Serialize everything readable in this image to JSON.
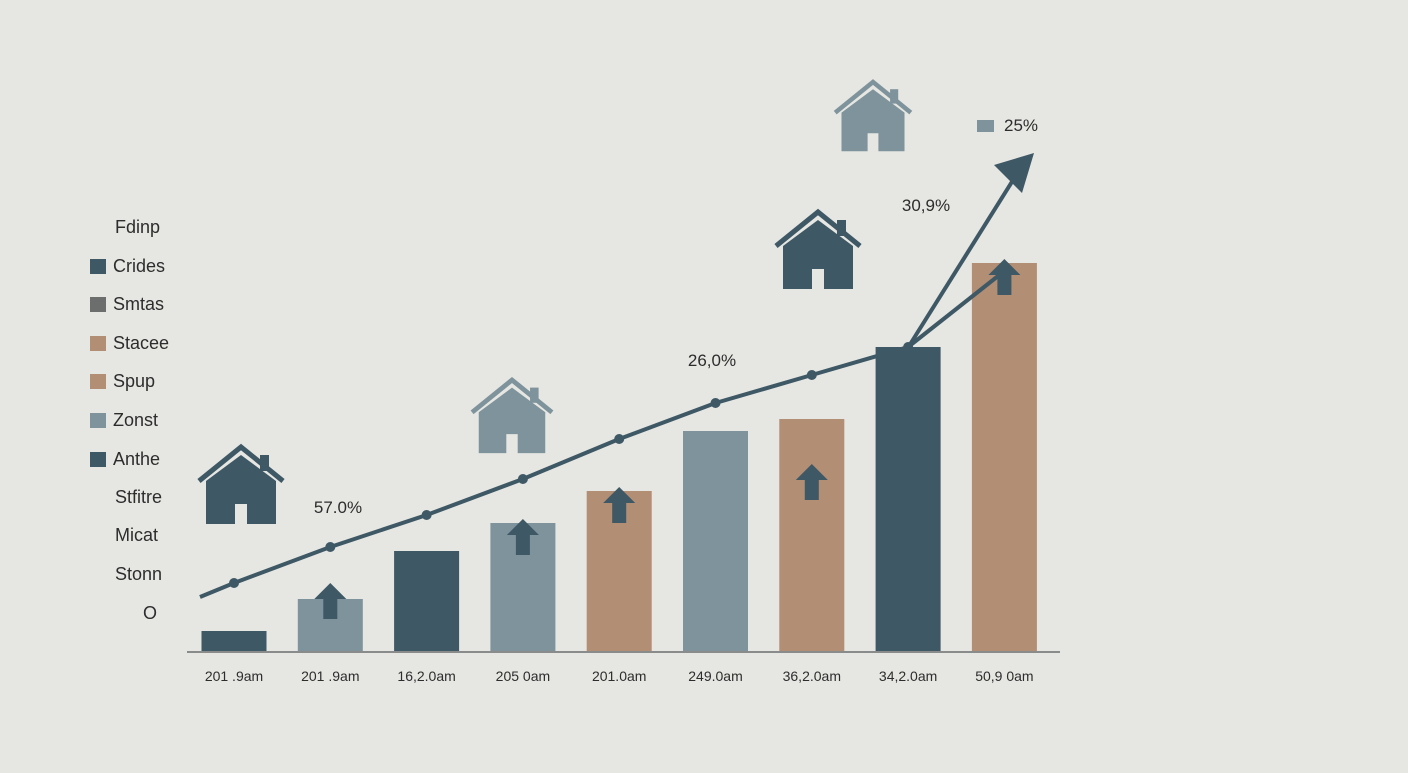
{
  "colors": {
    "background": "#e6e6e2",
    "dark_teal": "#3e5866",
    "slate": "#7e939c",
    "tan": "#b28e74",
    "gray": "#6b6e6d",
    "line": "#3e5866",
    "axis": "#8a8c8c",
    "text": "#2d2d2d"
  },
  "legend": {
    "title": "Fdinp",
    "entries": [
      {
        "label": "Crides",
        "color": "#3e5866"
      },
      {
        "label": "Smtas",
        "color": "#6b6e6d"
      },
      {
        "label": "Stacee",
        "color": "#b28e74"
      },
      {
        "label": "Spup",
        "color": "#b28e74"
      },
      {
        "label": "Zonst",
        "color": "#7e939c"
      },
      {
        "label": "Anthe",
        "color": "#3e5866"
      },
      {
        "label": "Stfitre",
        "color": null
      },
      {
        "label": "Micat",
        "color": null
      },
      {
        "label": "Stonn",
        "color": null
      },
      {
        "label": "O",
        "color": null
      }
    ]
  },
  "chart_data": {
    "type": "bar",
    "title": "",
    "xlabel": "",
    "ylabel": "",
    "ylim": [
      0,
      100
    ],
    "grid": false,
    "legend_position": "left",
    "categories": [
      "201 .9am",
      "201 .9am",
      "16,2.0am",
      "205  0am",
      "201.0am",
      "249.0am",
      "36,2.0am",
      "34,2.0am",
      "50,9 0am"
    ],
    "series": [
      {
        "type": "bar",
        "values": [
          5,
          13,
          25,
          32,
          40,
          55,
          58,
          76,
          97
        ],
        "colors": [
          "#3e5866",
          "#7e939c",
          "#3e5866",
          "#7e939c",
          "#b28e74",
          "#7e939c",
          "#b28e74",
          "#3e5866",
          "#b28e74"
        ],
        "up_arrow": [
          false,
          true,
          false,
          true,
          true,
          false,
          true,
          true,
          true
        ]
      },
      {
        "type": "line",
        "values": [
          17,
          26,
          34,
          43,
          53,
          62,
          69,
          76,
          95
        ],
        "arrow_end": true
      }
    ],
    "annotations": [
      {
        "text": "57.0%",
        "after_category_index": 1
      },
      {
        "text": "26,0%",
        "after_category_index": 5
      },
      {
        "text": "30,9%",
        "after_category_index": 7
      },
      {
        "text": "25%",
        "with_swatch": true,
        "swatch_color": "#7e939c"
      }
    ],
    "house_icons": [
      {
        "category_index": 0,
        "color": "#3e5866"
      },
      {
        "category_index": 3,
        "color": "#7e939c"
      },
      {
        "category_index": 6,
        "color": "#3e5866"
      },
      {
        "category_index": 7,
        "color": "#7e939c"
      }
    ]
  }
}
